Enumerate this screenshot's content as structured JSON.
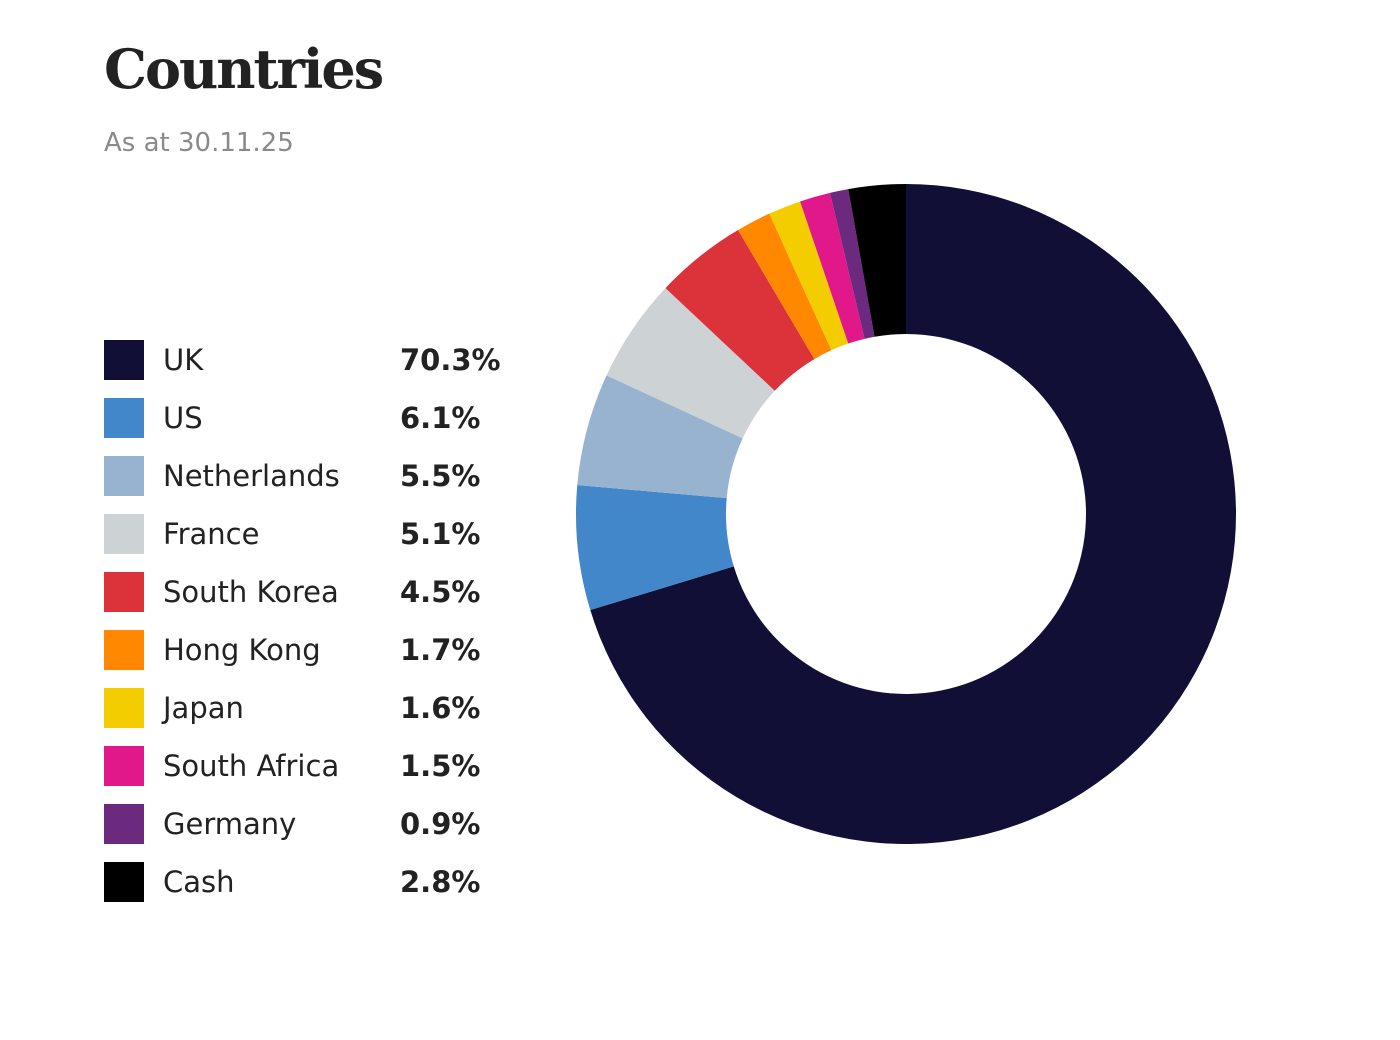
{
  "header": {
    "title": "Countries",
    "subtitle": "As at 30.11.25"
  },
  "legend": [
    {
      "label": "UK",
      "value": "70.3%",
      "color": "#110f35"
    },
    {
      "label": "US",
      "value": "6.1%",
      "color": "#4287c9"
    },
    {
      "label": "Netherlands",
      "value": "5.5%",
      "color": "#98b3cf"
    },
    {
      "label": "France",
      "value": "5.1%",
      "color": "#cdd2d5"
    },
    {
      "label": "South Korea",
      "value": "4.5%",
      "color": "#dc323a"
    },
    {
      "label": "Hong Kong",
      "value": "1.7%",
      "color": "#ff8800"
    },
    {
      "label": "Japan",
      "value": "1.6%",
      "color": "#f3cd00"
    },
    {
      "label": "South Africa",
      "value": "1.5%",
      "color": "#e0188a"
    },
    {
      "label": "Germany",
      "value": "0.9%",
      "color": "#6c2a7e"
    },
    {
      "label": "Cash",
      "value": "2.8%",
      "color": "#000000"
    }
  ],
  "chart_data": {
    "type": "pie",
    "subtype": "donut",
    "title": "Countries",
    "subtitle": "As at 30.11.25",
    "categories": [
      "UK",
      "US",
      "Netherlands",
      "France",
      "South Korea",
      "Hong Kong",
      "Japan",
      "South Africa",
      "Germany",
      "Cash"
    ],
    "values": [
      70.3,
      6.1,
      5.5,
      5.1,
      4.5,
      1.7,
      1.6,
      1.5,
      0.9,
      2.8
    ],
    "unit": "%",
    "colors": [
      "#110f35",
      "#4287c9",
      "#98b3cf",
      "#cdd2d5",
      "#dc323a",
      "#ff8800",
      "#f3cd00",
      "#e0188a",
      "#6c2a7e",
      "#000000"
    ],
    "legend_position": "left",
    "start_angle": "top (12 o'clock)",
    "direction": "clockwise"
  }
}
